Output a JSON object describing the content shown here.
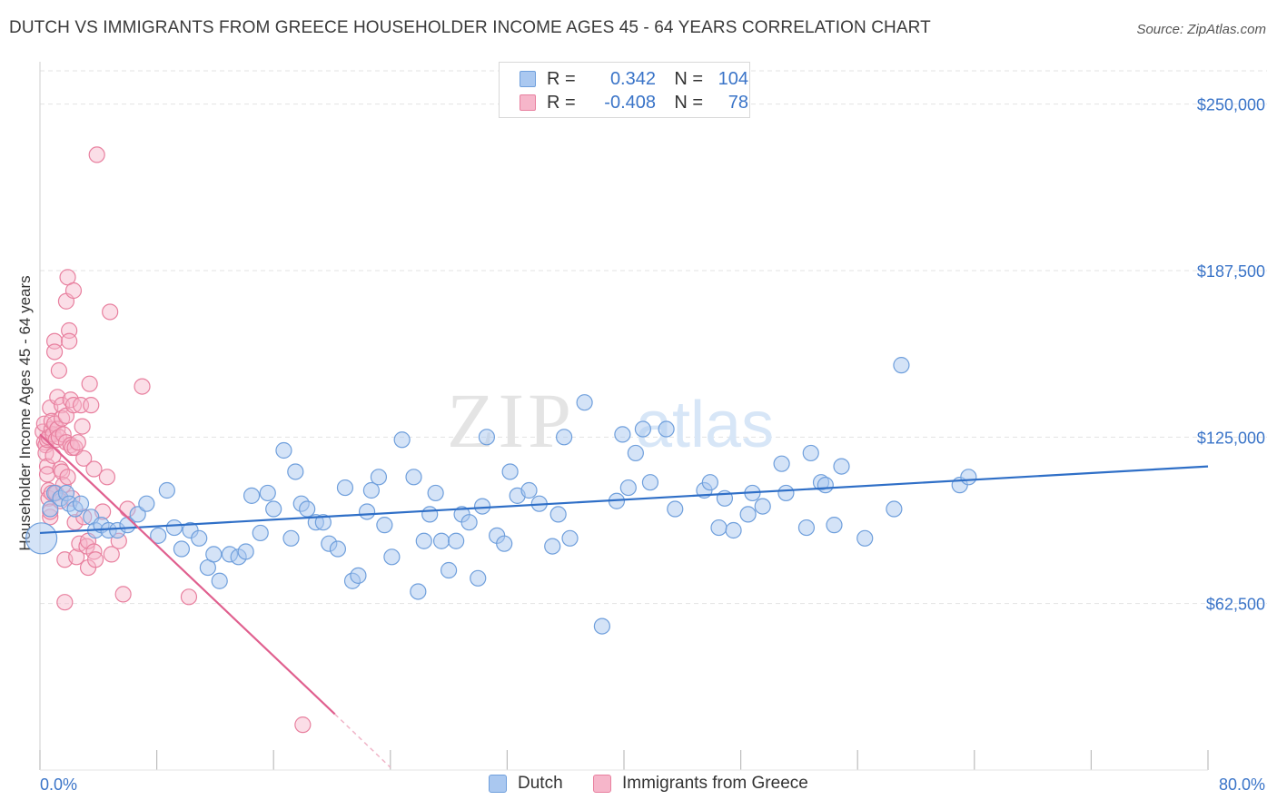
{
  "header": {
    "title": "DUTCH VS IMMIGRANTS FROM GREECE HOUSEHOLDER INCOME AGES 45 - 64 YEARS CORRELATION CHART",
    "source": "Source: ZipAtlas.com"
  },
  "watermark": {
    "zip": "ZIP",
    "atlas": "atlas"
  },
  "legend": {
    "rows": [
      {
        "r_key": "R =",
        "r_val": "0.342",
        "n_key": "N =",
        "n_val": "104"
      },
      {
        "r_key": "R =",
        "r_val": "-0.408",
        "n_key": "N =",
        "n_val": "78"
      }
    ]
  },
  "bottom_legend": {
    "dutch": "Dutch",
    "greece": "Immigrants from Greece"
  },
  "colors": {
    "dutch_fill": "#aac8f0",
    "dutch_stroke": "#6f9fdc",
    "dutch_line": "#2f6fc7",
    "greece_fill": "#f6b6ca",
    "greece_stroke": "#e8809f",
    "greece_line": "#e0608f",
    "axis_text": "#3a74c8",
    "grid": "#e3e3e3"
  },
  "chart_data": {
    "type": "scatter",
    "title": "DUTCH VS IMMIGRANTS FROM GREECE HOUSEHOLDER INCOME AGES 45 - 64 YEARS CORRELATION CHART",
    "xlabel": "",
    "ylabel": "Householder Income Ages 45 - 64 years",
    "xlim": [
      0,
      80
    ],
    "ylim": [
      0,
      262500
    ],
    "x_tick_labels": [
      "0.0%",
      "80.0%"
    ],
    "y_ticks": [
      62500,
      125000,
      187500,
      250000
    ],
    "y_tick_labels": [
      "$62,500",
      "$125,000",
      "$187,500",
      "$250,000"
    ],
    "grid": true,
    "legend_position": "top-center",
    "series": [
      {
        "name": "Dutch",
        "r": 0.342,
        "n": 104,
        "trend": {
          "x": [
            0,
            80
          ],
          "y": [
            89000,
            114000
          ]
        },
        "points": [
          [
            0.1,
            87000
          ],
          [
            0.7,
            98000
          ],
          [
            1.0,
            104000
          ],
          [
            1.4,
            102000
          ],
          [
            1.8,
            104000
          ],
          [
            2.0,
            100000
          ],
          [
            2.4,
            98000
          ],
          [
            2.8,
            100000
          ],
          [
            3.5,
            95000
          ],
          [
            3.8,
            90000
          ],
          [
            4.2,
            92000
          ],
          [
            4.7,
            90000
          ],
          [
            5.3,
            90000
          ],
          [
            6.0,
            92000
          ],
          [
            6.7,
            96000
          ],
          [
            7.3,
            100000
          ],
          [
            8.1,
            88000
          ],
          [
            8.7,
            105000
          ],
          [
            9.2,
            91000
          ],
          [
            9.7,
            83000
          ],
          [
            10.3,
            90000
          ],
          [
            10.9,
            87000
          ],
          [
            11.5,
            76000
          ],
          [
            11.9,
            81000
          ],
          [
            12.3,
            71000
          ],
          [
            13.0,
            81000
          ],
          [
            13.6,
            80000
          ],
          [
            14.1,
            82000
          ],
          [
            14.5,
            103000
          ],
          [
            15.1,
            89000
          ],
          [
            15.6,
            104000
          ],
          [
            16.0,
            98000
          ],
          [
            16.7,
            120000
          ],
          [
            17.2,
            87000
          ],
          [
            17.5,
            112000
          ],
          [
            17.9,
            100000
          ],
          [
            18.3,
            98000
          ],
          [
            18.9,
            93000
          ],
          [
            19.4,
            93000
          ],
          [
            19.8,
            85000
          ],
          [
            20.4,
            83000
          ],
          [
            20.9,
            106000
          ],
          [
            21.4,
            71000
          ],
          [
            21.8,
            73000
          ],
          [
            22.4,
            97000
          ],
          [
            22.7,
            105000
          ],
          [
            23.2,
            110000
          ],
          [
            23.6,
            92000
          ],
          [
            24.1,
            80000
          ],
          [
            24.8,
            124000
          ],
          [
            25.6,
            110000
          ],
          [
            25.9,
            67000
          ],
          [
            26.3,
            86000
          ],
          [
            26.7,
            96000
          ],
          [
            27.1,
            104000
          ],
          [
            27.5,
            86000
          ],
          [
            28.0,
            75000
          ],
          [
            28.5,
            86000
          ],
          [
            28.9,
            96000
          ],
          [
            29.4,
            93000
          ],
          [
            30.0,
            72000
          ],
          [
            30.3,
            99000
          ],
          [
            30.6,
            125000
          ],
          [
            31.3,
            88000
          ],
          [
            31.8,
            85000
          ],
          [
            32.2,
            112000
          ],
          [
            32.7,
            103000
          ],
          [
            33.5,
            105000
          ],
          [
            34.2,
            100000
          ],
          [
            35.1,
            84000
          ],
          [
            35.5,
            96000
          ],
          [
            35.9,
            125000
          ],
          [
            36.3,
            87000
          ],
          [
            37.3,
            138000
          ],
          [
            38.5,
            54000
          ],
          [
            39.5,
            101000
          ],
          [
            39.9,
            126000
          ],
          [
            40.3,
            106000
          ],
          [
            40.8,
            119000
          ],
          [
            41.3,
            128000
          ],
          [
            41.8,
            108000
          ],
          [
            42.9,
            128000
          ],
          [
            43.5,
            98000
          ],
          [
            45.5,
            105000
          ],
          [
            45.9,
            108000
          ],
          [
            46.5,
            91000
          ],
          [
            46.9,
            102000
          ],
          [
            47.5,
            90000
          ],
          [
            48.5,
            96000
          ],
          [
            48.8,
            104000
          ],
          [
            49.5,
            99000
          ],
          [
            50.8,
            115000
          ],
          [
            51.1,
            104000
          ],
          [
            52.5,
            91000
          ],
          [
            52.8,
            119000
          ],
          [
            53.5,
            108000
          ],
          [
            53.8,
            107000
          ],
          [
            54.4,
            92000
          ],
          [
            54.9,
            114000
          ],
          [
            56.5,
            87000
          ],
          [
            58.5,
            98000
          ],
          [
            59.0,
            152000
          ],
          [
            63.0,
            107000
          ],
          [
            63.6,
            110000
          ]
        ]
      },
      {
        "name": "Immigrants from Greece",
        "r": -0.408,
        "n": 78,
        "trend": {
          "x": [
            0,
            20.2
          ],
          "y": [
            126000,
            21000
          ]
        },
        "trend_dashed": {
          "x": [
            20.2,
            24.0
          ],
          "y": [
            21000,
            1000
          ]
        },
        "points": [
          [
            0.2,
            127000
          ],
          [
            0.3,
            130000
          ],
          [
            0.3,
            123000
          ],
          [
            0.4,
            122000
          ],
          [
            0.4,
            119000
          ],
          [
            0.5,
            124000
          ],
          [
            0.5,
            114000
          ],
          [
            0.5,
            111000
          ],
          [
            0.6,
            125000
          ],
          [
            0.6,
            105000
          ],
          [
            0.6,
            102000
          ],
          [
            0.7,
            136000
          ],
          [
            0.7,
            95000
          ],
          [
            0.7,
            97000
          ],
          [
            0.8,
            128000
          ],
          [
            0.8,
            131000
          ],
          [
            0.8,
            104000
          ],
          [
            0.9,
            118000
          ],
          [
            0.9,
            126000
          ],
          [
            1.0,
            161000
          ],
          [
            1.0,
            157000
          ],
          [
            1.0,
            130000
          ],
          [
            1.1,
            124000
          ],
          [
            1.1,
            104000
          ],
          [
            1.2,
            140000
          ],
          [
            1.2,
            128000
          ],
          [
            1.3,
            150000
          ],
          [
            1.3,
            125000
          ],
          [
            1.4,
            113000
          ],
          [
            1.4,
            101000
          ],
          [
            1.5,
            137000
          ],
          [
            1.5,
            132000
          ],
          [
            1.5,
            112000
          ],
          [
            1.6,
            126000
          ],
          [
            1.6,
            107000
          ],
          [
            1.7,
            79000
          ],
          [
            1.7,
            63000
          ],
          [
            1.8,
            176000
          ],
          [
            1.8,
            133000
          ],
          [
            1.8,
            123000
          ],
          [
            1.9,
            185000
          ],
          [
            1.9,
            110000
          ],
          [
            2.0,
            165000
          ],
          [
            2.0,
            161000
          ],
          [
            2.1,
            139000
          ],
          [
            2.1,
            122000
          ],
          [
            2.2,
            121000
          ],
          [
            2.2,
            102000
          ],
          [
            2.3,
            180000
          ],
          [
            2.3,
            137000
          ],
          [
            2.4,
            121000
          ],
          [
            2.4,
            93000
          ],
          [
            2.5,
            80000
          ],
          [
            2.6,
            123000
          ],
          [
            2.7,
            85000
          ],
          [
            2.8,
            137000
          ],
          [
            2.9,
            129000
          ],
          [
            3.0,
            117000
          ],
          [
            3.0,
            95000
          ],
          [
            3.2,
            84000
          ],
          [
            3.3,
            76000
          ],
          [
            3.3,
            86000
          ],
          [
            3.4,
            145000
          ],
          [
            3.5,
            137000
          ],
          [
            3.7,
            113000
          ],
          [
            3.7,
            82000
          ],
          [
            3.8,
            79000
          ],
          [
            3.9,
            231000
          ],
          [
            4.3,
            97000
          ],
          [
            4.6,
            110000
          ],
          [
            4.8,
            172000
          ],
          [
            4.9,
            81000
          ],
          [
            5.4,
            86000
          ],
          [
            5.7,
            66000
          ],
          [
            6.0,
            98000
          ],
          [
            7.0,
            144000
          ],
          [
            10.2,
            65000
          ],
          [
            18.0,
            17000
          ]
        ]
      }
    ]
  }
}
